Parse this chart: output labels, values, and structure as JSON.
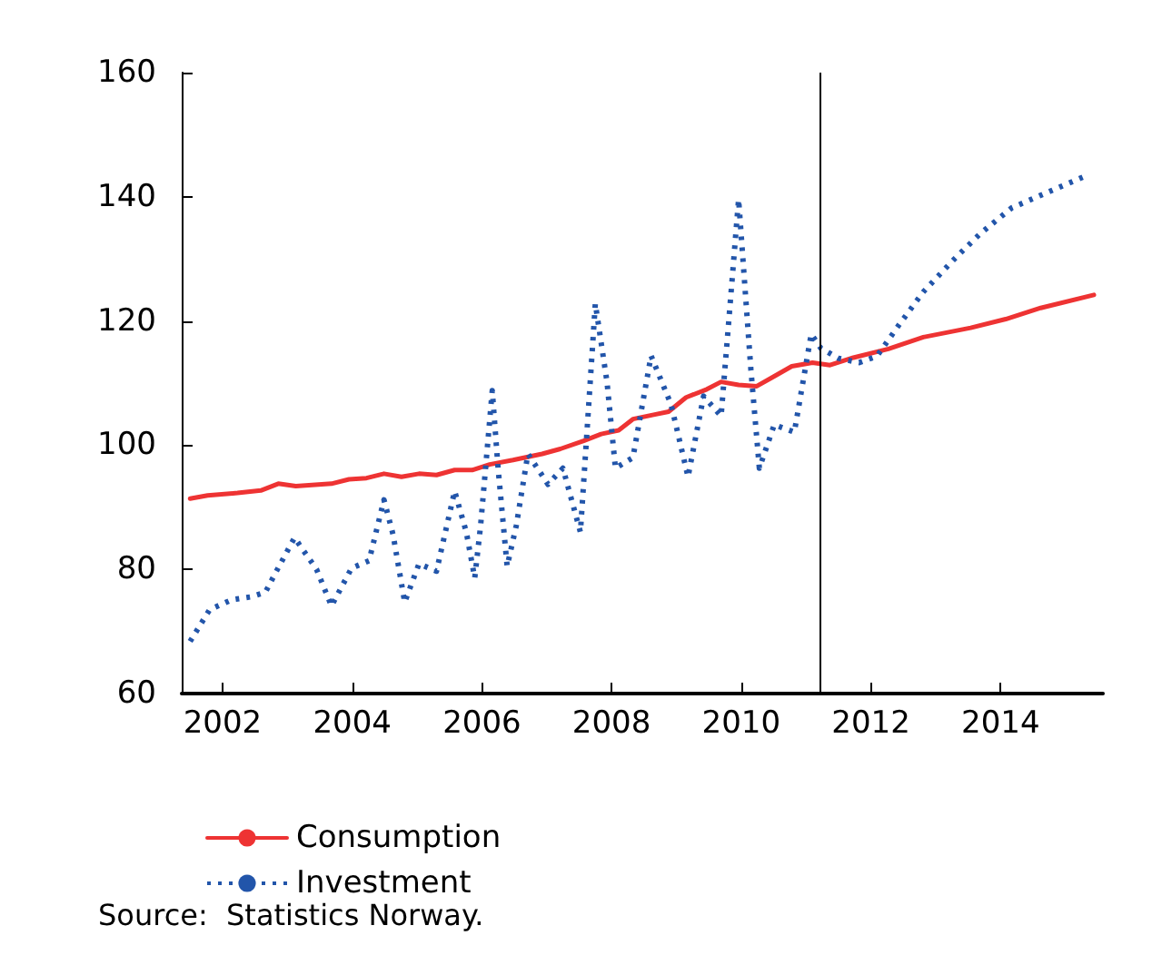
{
  "chart_data": {
    "type": "line",
    "legend": "bottom left",
    "grid": false,
    "marker": "none",
    "xlim": [
      2001.37,
      2015.58
    ],
    "xticks": [
      2002,
      2004,
      2006,
      2008,
      2010,
      2012,
      2014
    ],
    "ylim": [
      60,
      160
    ],
    "yticks": [
      60,
      80,
      100,
      120,
      140,
      160
    ],
    "ref_lines": [
      {
        "axis": "x",
        "value": 2011.21,
        "color": "#000000"
      }
    ],
    "annotations": [
      "Source:  Statistics Norway."
    ],
    "series": [
      {
        "name": "Consumption",
        "color": "#ee3333",
        "line_style": "solid",
        "x": [
          2001.5,
          2001.77,
          2002.23,
          2002.59,
          2002.86,
          2003.13,
          2003.68,
          2003.95,
          2004.22,
          2004.49,
          2004.76,
          2005.03,
          2005.3,
          2005.58,
          2005.85,
          2006.12,
          2006.48,
          2006.93,
          2007.21,
          2007.57,
          2007.84,
          2008.11,
          2008.33,
          2008.65,
          2008.88,
          2009.15,
          2009.47,
          2009.69,
          2009.96,
          2010.24,
          2010.51,
          2010.78,
          2011.1,
          2011.37,
          2011.73,
          2012.27,
          2012.81,
          2013.54,
          2014.08,
          2014.62,
          2015.44
        ],
        "values": [
          91.4,
          91.9,
          92.3,
          92.7,
          93.8,
          93.4,
          93.8,
          94.5,
          94.7,
          95.4,
          94.9,
          95.4,
          95.2,
          96.0,
          96.0,
          96.9,
          97.6,
          98.6,
          99.4,
          100.7,
          101.8,
          102.4,
          104.2,
          104.9,
          105.4,
          107.7,
          109.0,
          110.2,
          109.7,
          109.5,
          111.1,
          112.7,
          113.3,
          112.9,
          114.1,
          115.5,
          117.4,
          118.9,
          120.3,
          122.1,
          124.2
        ]
      },
      {
        "name": "Investment",
        "color": "#2255aa",
        "line_style": "dotted",
        "x": [
          2001.5,
          2001.8,
          2002.14,
          2002.45,
          2002.66,
          2002.81,
          2003.11,
          2003.45,
          2003.68,
          2003.99,
          2004.26,
          2004.49,
          2004.63,
          2004.81,
          2005.03,
          2005.3,
          2005.58,
          2005.76,
          2005.89,
          2005.98,
          2006.16,
          2006.25,
          2006.39,
          2006.53,
          2006.71,
          2007.02,
          2007.25,
          2007.52,
          2007.75,
          2007.93,
          2008.06,
          2008.33,
          2008.61,
          2008.92,
          2009.18,
          2009.42,
          2009.69,
          2009.96,
          2010.15,
          2010.28,
          2010.51,
          2010.82,
          2011.08,
          2011.23,
          2011.5,
          2011.82,
          2012.09,
          2012.45,
          2012.81,
          2013.27,
          2013.68,
          2014.17,
          2014.72,
          2015.3
        ],
        "values": [
          68.4,
          73.5,
          75.1,
          75.6,
          76.3,
          79.3,
          85.1,
          80.0,
          74.1,
          80.2,
          81.4,
          91.2,
          85.6,
          74.7,
          80.9,
          79.7,
          92.6,
          86.0,
          78.6,
          87.0,
          108.8,
          96.3,
          80.5,
          87.0,
          98.6,
          93.7,
          96.3,
          86.0,
          122.8,
          110.2,
          96.3,
          98.0,
          114.4,
          106.5,
          94.9,
          107.9,
          104.7,
          139.6,
          112.1,
          96.3,
          103.3,
          102.1,
          117.9,
          115.6,
          114.0,
          113.3,
          114.3,
          119.6,
          124.7,
          129.8,
          134.0,
          138.2,
          140.7,
          143.3
        ]
      }
    ]
  }
}
